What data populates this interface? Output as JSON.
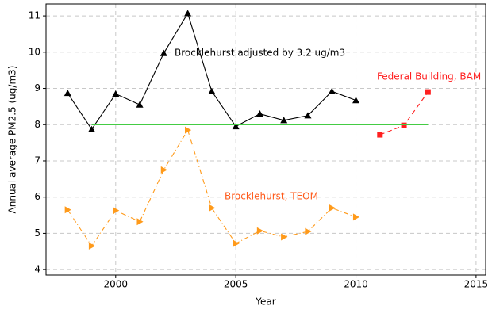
{
  "chart_data": {
    "type": "line",
    "xlabel": "Year",
    "ylabel": "Annual average PM2.5 (ug/m3)",
    "xlim": [
      1997.1,
      2015.4
    ],
    "xticks": [
      2000,
      2005,
      2010,
      2015
    ],
    "ylim": [
      3.85,
      11.33
    ],
    "yticks": [
      4,
      5,
      6,
      7,
      8,
      9,
      10,
      11
    ],
    "grid": true,
    "series": [
      {
        "color": "#000000",
        "marker": "triangle-up",
        "dash": "none",
        "x": [
          1998,
          1999,
          2000,
          2001,
          2002,
          2003,
          2004,
          2005,
          2006,
          2007,
          2008,
          2009,
          2010
        ],
        "values": [
          8.87,
          7.87,
          8.85,
          8.55,
          9.97,
          11.07,
          8.92,
          7.95,
          8.3,
          8.12,
          8.25,
          8.92,
          8.67
        ]
      },
      {
        "color": "#ff9a1a",
        "marker": "triangle-right",
        "dash": "6 3 1 3",
        "x": [
          1998,
          1999,
          2000,
          2001,
          2002,
          2003,
          2004,
          2005,
          2006,
          2007,
          2008,
          2009,
          2010
        ],
        "values": [
          5.65,
          4.65,
          5.63,
          5.32,
          6.75,
          7.85,
          5.7,
          4.72,
          5.07,
          4.9,
          5.05,
          5.7,
          5.45
        ]
      },
      {
        "color": "#ff2020",
        "marker": "square",
        "dash": "6 4",
        "x": [
          2011,
          2012,
          2013
        ],
        "values": [
          7.72,
          7.98,
          8.9
        ]
      },
      {
        "color": "#44cc44",
        "marker": "none",
        "dash": "none",
        "x": [
          1999,
          2013
        ],
        "values": [
          8,
          8
        ]
      }
    ],
    "annotations": [
      {
        "text": "Brocklehurst adjusted by 3.2 ug/m3",
        "color": "#000000"
      },
      {
        "text": "Federal Building, BAM",
        "color": "#ff2020"
      },
      {
        "text": "Brocklehurst, TEOM",
        "color": "#ff5a1a"
      }
    ]
  }
}
